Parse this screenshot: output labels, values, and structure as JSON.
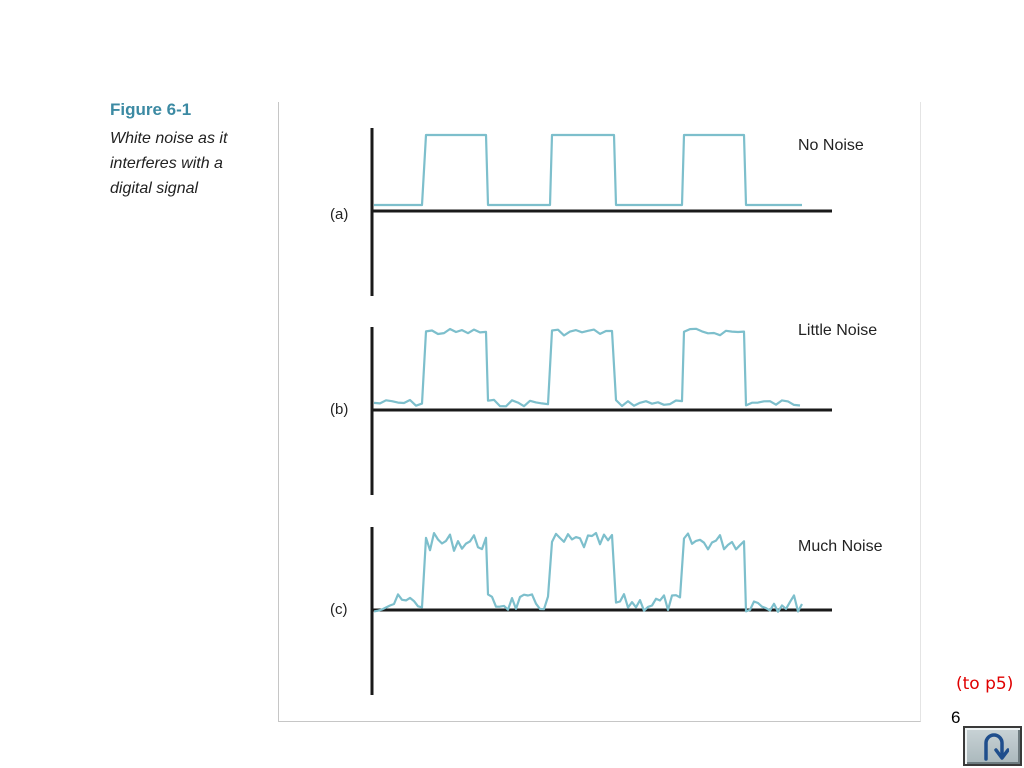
{
  "caption": {
    "figure_label": "Figure 6-1",
    "description": "White noise as it interferes with a digital signal"
  },
  "panels": [
    {
      "letter": "(a)",
      "title": "No Noise",
      "noise_level": "none"
    },
    {
      "letter": "(b)",
      "title": "Little Noise",
      "noise_level": "little"
    },
    {
      "letter": "(c)",
      "title": "Much Noise",
      "noise_level": "much"
    }
  ],
  "navigation": {
    "link_label": "(to p5)",
    "page_number": "6",
    "return_icon": "u-turn-return-icon"
  },
  "colors": {
    "signal": "#7dbfcc",
    "axis": "#1a1a1a",
    "caption_title": "#3c8aa3",
    "link": "#e00000"
  }
}
